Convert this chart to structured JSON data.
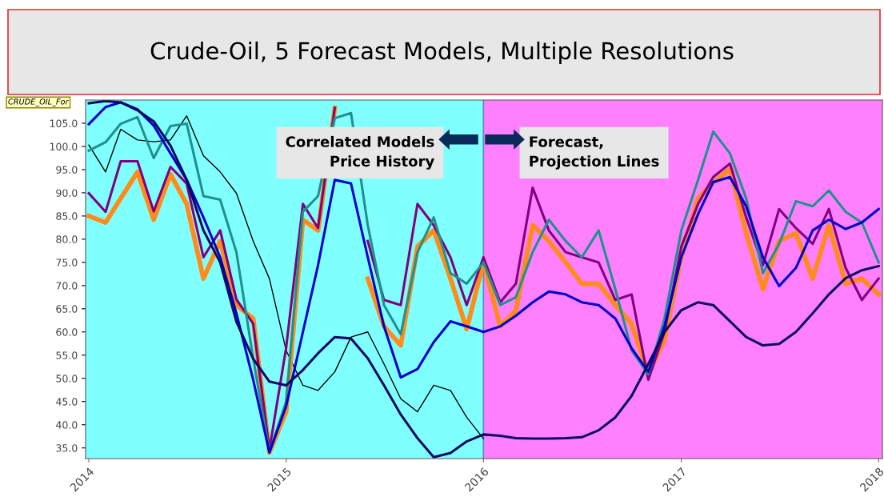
{
  "chart_data": {
    "type": "line",
    "title": "Crude-Oil, 5 Forecast Models, Multiple Resolutions",
    "annotations": [
      "CRUDE_OIL_For",
      "Correlated Models\nPrice History",
      "Forecast,\nProjection Lines"
    ],
    "x": [
      "2014-01",
      "2014-02",
      "2014-03",
      "2014-04",
      "2014-05",
      "2014-06",
      "2014-07",
      "2014-08",
      "2014-09",
      "2014-10",
      "2014-11",
      "2014-12",
      "2015-01",
      "2015-02",
      "2015-03",
      "2015-04",
      "2015-05",
      "2015-06",
      "2015-07",
      "2015-08",
      "2015-09",
      "2015-10",
      "2015-11",
      "2015-12",
      "2016-01",
      "2016-02",
      "2016-03",
      "2016-04",
      "2016-05",
      "2016-06",
      "2016-07",
      "2016-08",
      "2016-09",
      "2016-10",
      "2016-11",
      "2016-12",
      "2017-01",
      "2017-02",
      "2017-03",
      "2017-04",
      "2017-05",
      "2017-06",
      "2017-07",
      "2017-08",
      "2017-09",
      "2017-10",
      "2017-11",
      "2017-12",
      "2018-01"
    ],
    "series": [
      {
        "color": "#000000",
        "values": [
          100.3,
          94.5,
          103.7,
          101.4,
          101,
          101.4,
          106.6,
          98,
          94.5,
          89.9,
          79.6,
          71.5,
          56,
          48.5,
          47.4,
          51.4,
          58.9,
          60,
          53.1,
          45.6,
          42.8,
          48.5,
          47.4,
          41.6,
          37,
          null,
          null,
          null,
          null,
          null,
          null,
          null,
          null,
          null,
          null,
          null,
          null,
          null,
          null,
          null,
          null,
          null,
          null,
          null,
          null,
          null,
          null,
          null,
          null
        ]
      },
      {
        "color": "#ff8c1a",
        "values": [
          85,
          83.6,
          88.8,
          94.5,
          84.2,
          94,
          87.6,
          71.5,
          79.6,
          65.8,
          62.9,
          34,
          42.8,
          84.2,
          81.9,
          108.3,
          null,
          71.5,
          61.2,
          57.1,
          78.4,
          81.9,
          71.5,
          60.6,
          75,
          61.2,
          64.6,
          83,
          79.6,
          75,
          70.4,
          70.4,
          65.8,
          61.8,
          50.9,
          58.3,
          76.1,
          88.8,
          92.2,
          95.1,
          81.3,
          69.2,
          79.6,
          81.3,
          71.5,
          83,
          70.4,
          71.5,
          68.1
        ]
      },
      {
        "color": "#800080",
        "values": [
          89.9,
          85.9,
          96.8,
          96.8,
          86,
          95.6,
          92,
          76.1,
          81.9,
          67,
          61.8,
          34.6,
          56.6,
          87.6,
          82.4,
          108.3,
          null,
          79.6,
          66.9,
          65.8,
          87.6,
          83,
          76.1,
          65.8,
          76.1,
          66.4,
          70.4,
          91.1,
          81.9,
          77.2,
          76.1,
          75,
          66.9,
          68.1,
          49.7,
          60,
          78.4,
          87.6,
          93.4,
          96.3,
          84.7,
          74.4,
          86.5,
          82.4,
          79,
          86.5,
          73.8,
          66.9,
          71.5
        ]
      },
      {
        "color": "#20908c",
        "values": [
          99.1,
          100.9,
          104.9,
          106.3,
          97.5,
          104.4,
          104.9,
          89.3,
          88.5,
          77.2,
          54.3,
          34.1,
          45,
          85.9,
          89.3,
          106.1,
          107.2,
          83,
          65.8,
          59.5,
          77.2,
          84.7,
          72.7,
          70.4,
          75,
          65.8,
          67.5,
          77.2,
          84.2,
          79.6,
          76.1,
          81.9,
          69.2,
          56,
          50.9,
          62.9,
          81.9,
          92.8,
          103.2,
          98.5,
          88.8,
          72.7,
          79,
          88.2,
          87.1,
          90.5,
          85.9,
          83.6,
          75
        ]
      },
      {
        "color": "#0000cc",
        "values": [
          104.8,
          108.5,
          109.5,
          108,
          104.5,
          98.5,
          92.8,
          84.7,
          76.1,
          64,
          49.7,
          34,
          44,
          60,
          74.4,
          92.8,
          92,
          76.1,
          61.2,
          50.2,
          52,
          57.8,
          62.3,
          61.2,
          60,
          61.2,
          63.5,
          66.4,
          68.7,
          68.1,
          66.4,
          65.8,
          62.9,
          56.5,
          51.4,
          61.2,
          76.1,
          85.4,
          92.3,
          93.4,
          87.1,
          76.1,
          69.9,
          73.8,
          81.9,
          84.2,
          82.2,
          83.6,
          86.5
        ]
      },
      {
        "color": "#0a0a60",
        "values": [
          109.3,
          109.8,
          109.5,
          107.8,
          105.4,
          100.2,
          92.8,
          81.9,
          75,
          62.2,
          54.2,
          49.3,
          48.5,
          51.8,
          55.4,
          58.9,
          58.6,
          54.3,
          48.5,
          42.2,
          37.1,
          33,
          33.9,
          36.4,
          37.9,
          37.6,
          37.1,
          37,
          37,
          37.1,
          37.3,
          38.8,
          41.6,
          46.2,
          53.1,
          60,
          64.7,
          66.4,
          65.8,
          62.3,
          58.9,
          57.1,
          57.4,
          60,
          64,
          68.1,
          71.6,
          73.3,
          74.2
        ]
      }
    ],
    "xlim": [
      "2013-12-26",
      "2018-01-08"
    ],
    "xticks": [
      {
        "value": "2014-01-01",
        "label": "2014"
      },
      {
        "value": "2015-01-01",
        "label": "2015"
      },
      {
        "value": "2016-01-01",
        "label": "2016"
      },
      {
        "value": "2017-01-01",
        "label": "2017"
      },
      {
        "value": "2018-01-01",
        "label": "2018"
      }
    ],
    "ylim": [
      32.7,
      110
    ],
    "yticks": [
      {
        "value": 35,
        "label": "35.0"
      },
      {
        "value": 40,
        "label": "40.0"
      },
      {
        "value": 45,
        "label": "45.0"
      },
      {
        "value": 50,
        "label": "50.0"
      },
      {
        "value": 55,
        "label": "55.0"
      },
      {
        "value": 60,
        "label": "60.0"
      },
      {
        "value": 65,
        "label": "65.0"
      },
      {
        "value": 70,
        "label": "70.0"
      },
      {
        "value": 75,
        "label": "75.0"
      },
      {
        "value": 80,
        "label": "80.0"
      },
      {
        "value": 85,
        "label": "85.0"
      },
      {
        "value": 90,
        "label": "90.0"
      },
      {
        "value": 95,
        "label": "95.0"
      },
      {
        "value": 100,
        "label": "100.0"
      },
      {
        "value": 105,
        "label": "105.0"
      }
    ],
    "bands": [
      {
        "axis": "x",
        "from": "2013-12-26",
        "to": "2016-01-01",
        "color": "#80ffff"
      },
      {
        "axis": "x",
        "from": "2016-01-01",
        "to": "2018-01-08",
        "color": "#ff80ff"
      }
    ],
    "ref_lines": [
      {
        "axis": "x",
        "value": "2016-01-01",
        "color": "#5a8ab0"
      }
    ],
    "grid": false,
    "marker": "none",
    "line_style": "solid"
  }
}
